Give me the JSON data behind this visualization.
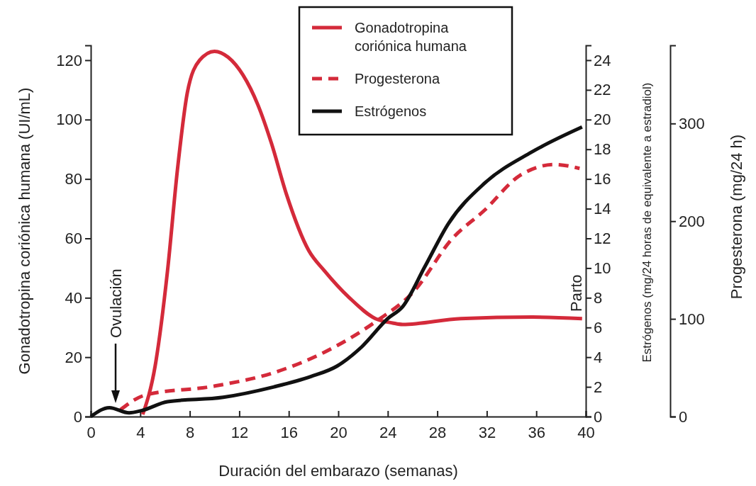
{
  "chart_data": {
    "type": "line",
    "xlabel": "Duración del embarazo (semanas)",
    "ylabel": "Gonadotropina coriónica humana (UI/mL)",
    "y2label": "Estrógenos (mg/24 horas de equivalente a estradiol)",
    "y3label": "Progesterona (mg/24 h)",
    "xlim": [
      0,
      40
    ],
    "xticks": [
      0,
      4,
      8,
      12,
      16,
      20,
      24,
      28,
      32,
      36,
      40
    ],
    "ylim": [
      0,
      125
    ],
    "yticks": [
      0,
      20,
      40,
      60,
      80,
      100,
      120
    ],
    "y2lim": [
      0,
      25
    ],
    "y2ticks": [
      0,
      2,
      4,
      6,
      8,
      10,
      12,
      14,
      16,
      18,
      20,
      22,
      24
    ],
    "y3lim": [
      0,
      380
    ],
    "y3ticks": [
      0,
      100,
      200,
      300
    ],
    "grid": false,
    "legend": "top",
    "marker": "none",
    "annotations": [
      "Ovulación",
      "Parto"
    ],
    "series": [
      {
        "name": "Gonadotropina coriónica humana",
        "color": "#d42a3a",
        "line_style": "solid",
        "x": [
          4.2,
          5.2,
          6.2,
          7.0,
          7.8,
          8.8,
          10.0,
          11.1,
          12.3,
          13.5,
          14.6,
          15.8,
          17.6,
          18.9,
          20.9,
          23.0,
          24.4,
          25.2,
          29.9,
          35.7,
          39.7
        ],
        "values": [
          0.7,
          17,
          49,
          83,
          109,
          120,
          123,
          121,
          115,
          105,
          92,
          75,
          56,
          49,
          40,
          33,
          31.5,
          31,
          33,
          33.5,
          33
        ]
      },
      {
        "name": "Progesterona",
        "color": "#d42a3a",
        "line_style": "dashed",
        "axis": "y3",
        "x": [
          2.4,
          4.4,
          9.9,
          14.8,
          18.9,
          23.0,
          26.1,
          29.2,
          31.8,
          34.7,
          37.5,
          39.5
        ],
        "values": [
          7,
          22,
          31,
          45,
          66,
          97,
          128,
          182,
          211,
          247,
          258,
          254
        ]
      },
      {
        "name": "Estrógenos",
        "color": "#111111",
        "line_style": "solid",
        "axis": "y2",
        "x": [
          0,
          1.5,
          3.1,
          4.1,
          6.2,
          10.7,
          14.8,
          17.8,
          19.9,
          21.9,
          24.0,
          25.2,
          27.0,
          28.9,
          31.8,
          35.6,
          39.7
        ],
        "values": [
          0,
          0.6,
          0.25,
          0.4,
          1.0,
          1.3,
          2.0,
          2.7,
          3.4,
          4.7,
          6.6,
          7.4,
          10.1,
          13.0,
          15.7,
          17.8,
          19.5
        ]
      }
    ]
  }
}
